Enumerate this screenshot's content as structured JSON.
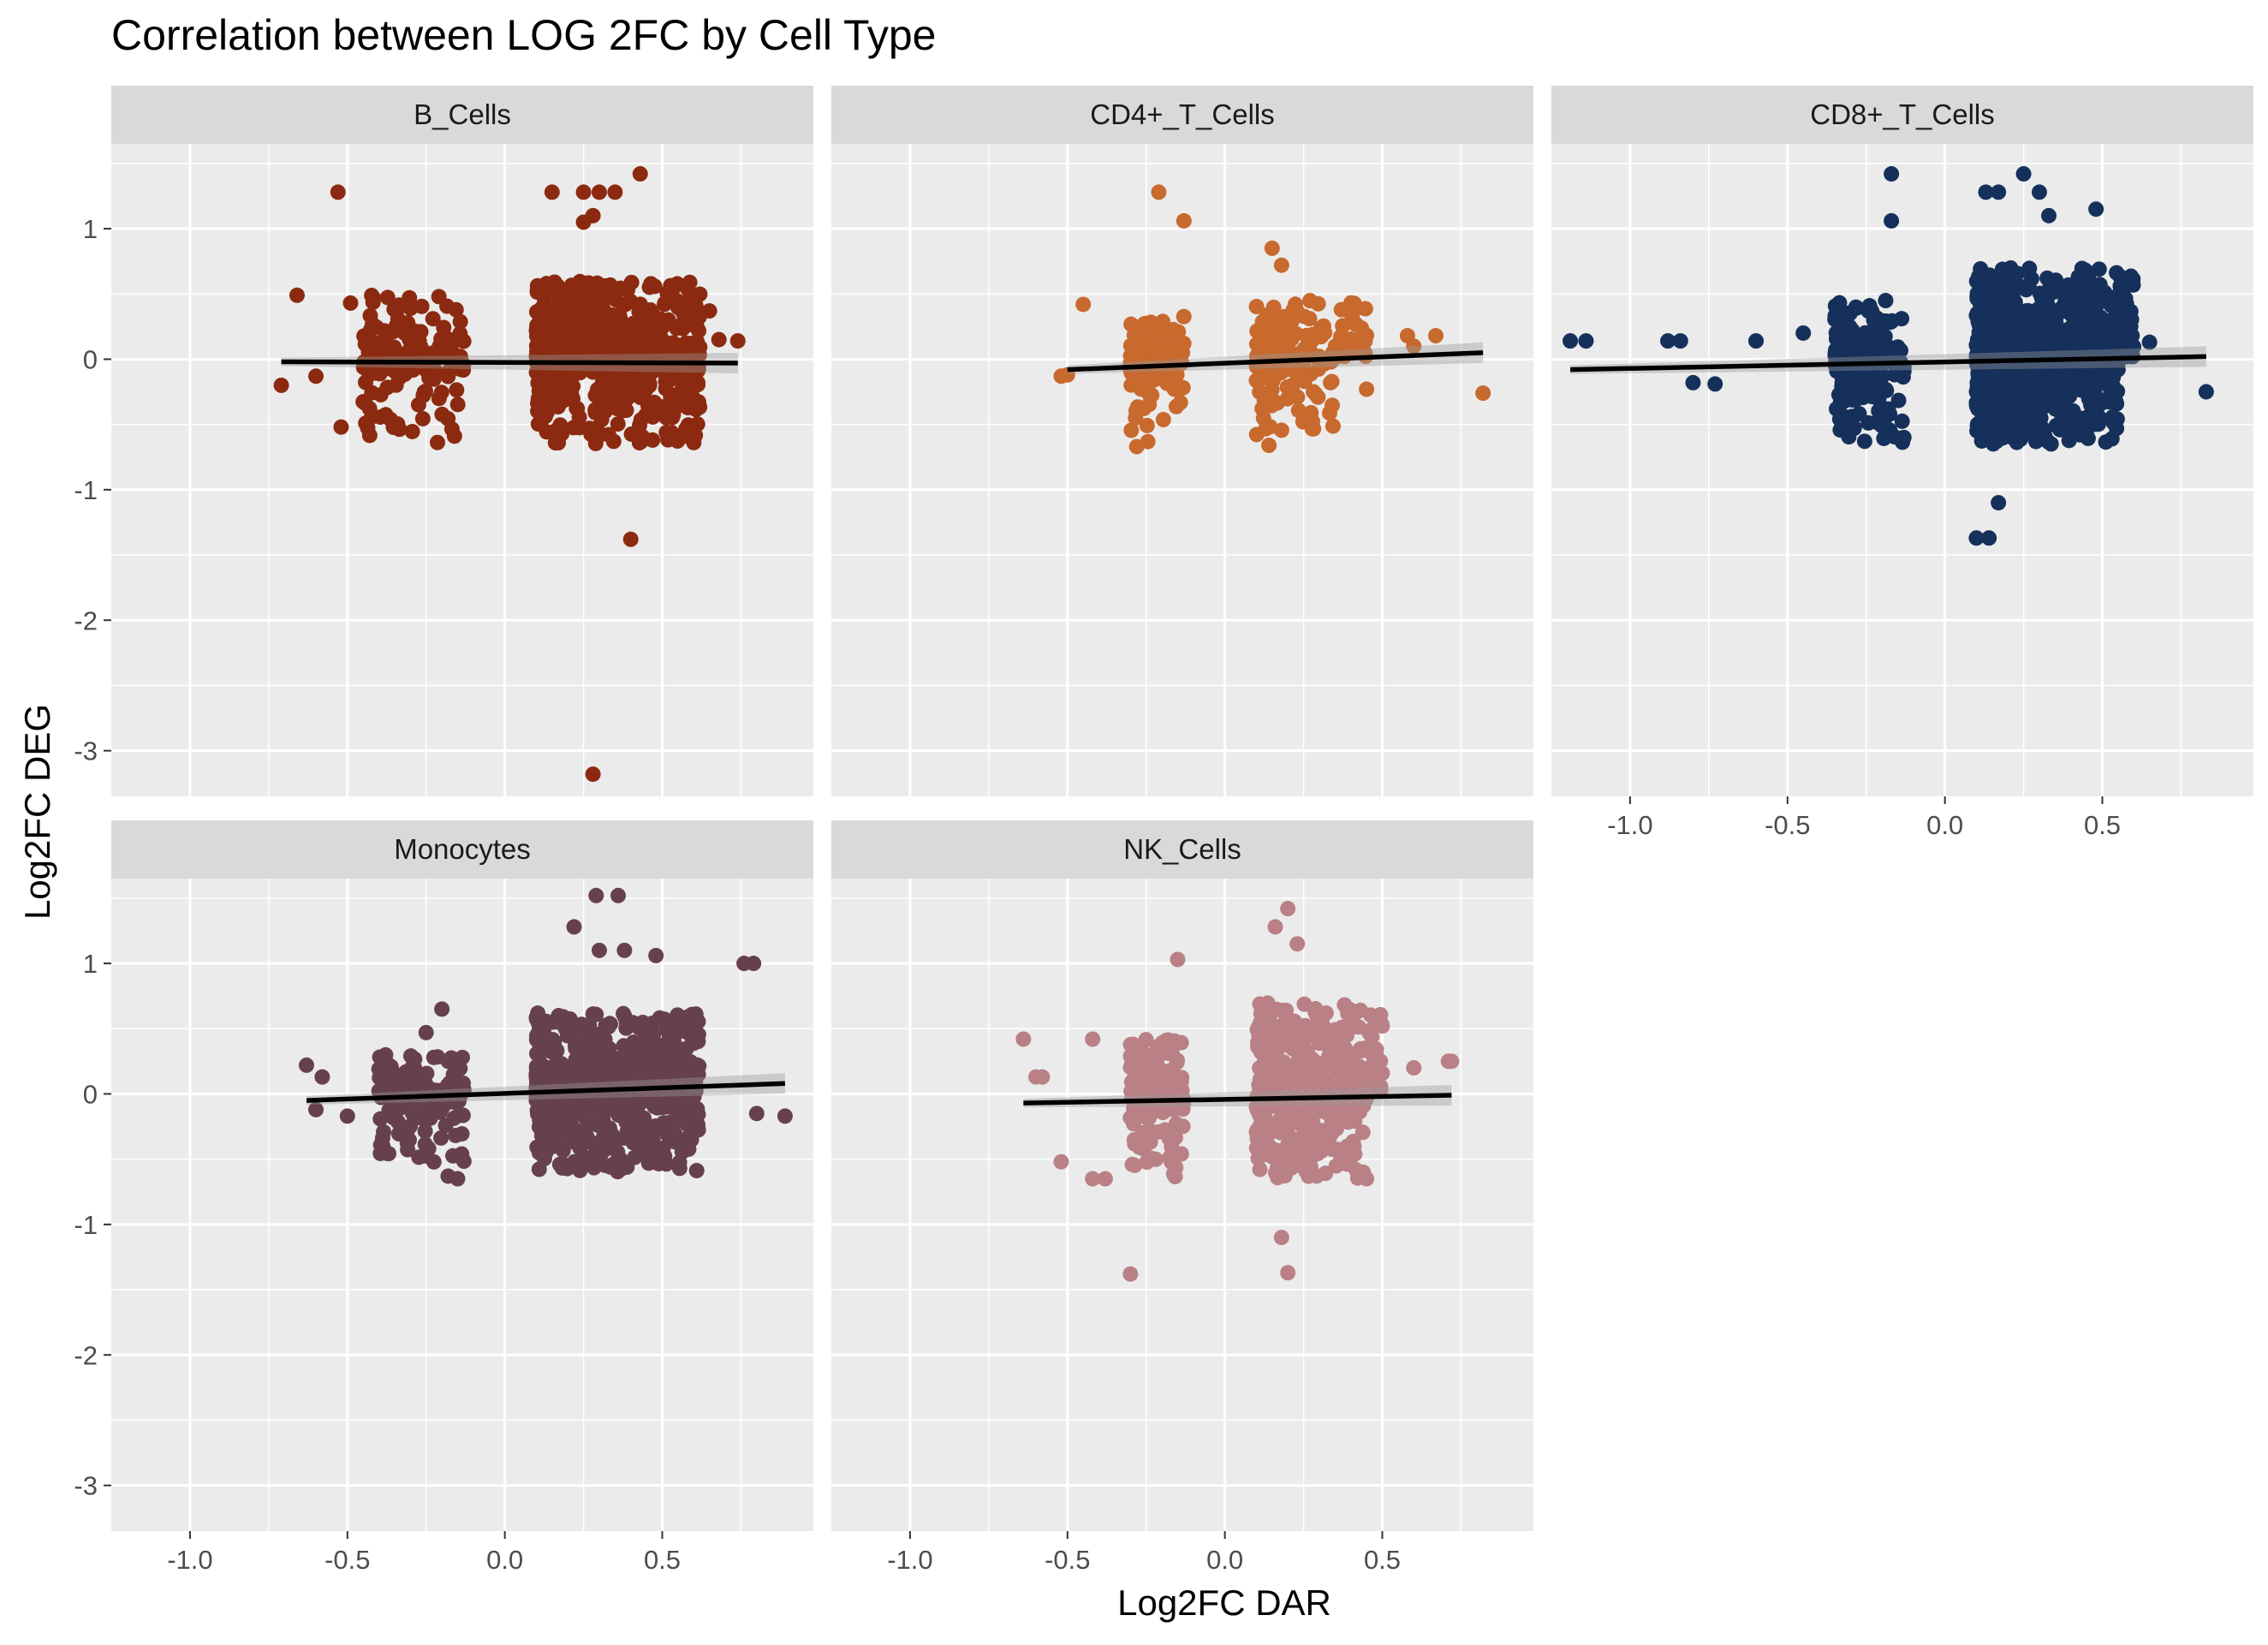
{
  "chart_data": {
    "type": "scatter",
    "title": "Correlation between LOG 2FC by Cell Type",
    "xlabel": "Log2FC DAR",
    "ylabel": "Log2FC DEG",
    "xlim": [
      -1.25,
      0.98
    ],
    "ylim": [
      -3.35,
      1.65
    ],
    "x_ticks": [
      -1.0,
      -0.5,
      0.0,
      0.5
    ],
    "x_tick_labels": [
      "-1.0",
      "-0.5",
      "0.0",
      "0.5"
    ],
    "y_ticks": [
      1,
      0,
      -1,
      -2,
      -3
    ],
    "y_tick_labels": [
      "1",
      "0",
      "-1",
      "-2",
      "-3"
    ],
    "grid": true,
    "legend": "none",
    "panels": [
      {
        "name": "B_Cells",
        "color": "#8B2A10",
        "trend": {
          "x": [
            -0.71,
            0.74
          ],
          "y": [
            -0.02,
            -0.03
          ]
        },
        "clusters": [
          {
            "x": [
              -0.45,
              -0.13
            ],
            "y": [
              0.02,
              0.5
            ],
            "n": 90
          },
          {
            "x": [
              -0.45,
              -0.13
            ],
            "y": [
              -0.65,
              -0.02
            ],
            "n": 80
          },
          {
            "x": [
              0.1,
              0.62
            ],
            "y": [
              0.02,
              0.6
            ],
            "n": 420
          },
          {
            "x": [
              0.1,
              0.62
            ],
            "y": [
              -0.65,
              -0.02
            ],
            "n": 300
          }
        ],
        "points": [
          {
            "x": -0.53,
            "y": 1.28
          },
          {
            "x": 0.15,
            "y": 1.28
          },
          {
            "x": 0.25,
            "y": 1.28
          },
          {
            "x": 0.3,
            "y": 1.28
          },
          {
            "x": 0.35,
            "y": 1.28
          },
          {
            "x": 0.43,
            "y": 1.42
          },
          {
            "x": 0.25,
            "y": 1.05
          },
          {
            "x": 0.28,
            "y": 1.1
          },
          {
            "x": -0.66,
            "y": 0.49
          },
          {
            "x": -0.6,
            "y": -0.13
          },
          {
            "x": -0.52,
            "y": -0.52
          },
          {
            "x": -0.49,
            "y": 0.43
          },
          {
            "x": -0.71,
            "y": -0.2
          },
          {
            "x": 0.4,
            "y": -1.38
          },
          {
            "x": 0.28,
            "y": -3.18
          },
          {
            "x": 0.68,
            "y": 0.15
          },
          {
            "x": 0.74,
            "y": 0.14
          },
          {
            "x": 0.65,
            "y": 0.37
          }
        ]
      },
      {
        "name": "CD4+_T_Cells",
        "color": "#C8692E",
        "trend": {
          "x": [
            -0.5,
            0.82
          ],
          "y": [
            -0.08,
            0.05
          ]
        },
        "clusters": [
          {
            "x": [
              -0.3,
              -0.13
            ],
            "y": [
              0.02,
              0.42
            ],
            "n": 45
          },
          {
            "x": [
              -0.3,
              -0.13
            ],
            "y": [
              -0.65,
              -0.02
            ],
            "n": 55
          },
          {
            "x": [
              0.1,
              0.45
            ],
            "y": [
              0.02,
              0.45
            ],
            "n": 110
          },
          {
            "x": [
              0.1,
              0.35
            ],
            "y": [
              -0.6,
              -0.02
            ],
            "n": 80
          }
        ],
        "points": [
          {
            "x": -0.21,
            "y": 1.28
          },
          {
            "x": -0.13,
            "y": 1.06
          },
          {
            "x": 0.15,
            "y": 0.85
          },
          {
            "x": 0.18,
            "y": 0.72
          },
          {
            "x": -0.45,
            "y": 0.42
          },
          {
            "x": -0.52,
            "y": -0.13
          },
          {
            "x": -0.5,
            "y": -0.12
          },
          {
            "x": -0.28,
            "y": -0.67
          },
          {
            "x": 0.14,
            "y": -0.66
          },
          {
            "x": 0.45,
            "y": -0.23
          },
          {
            "x": 0.58,
            "y": 0.18
          },
          {
            "x": 0.6,
            "y": 0.1
          },
          {
            "x": 0.67,
            "y": 0.18
          },
          {
            "x": 0.82,
            "y": -0.26
          }
        ]
      },
      {
        "name": "CD8+_T_Cells",
        "color": "#15305A",
        "trend": {
          "x": [
            -1.19,
            0.83
          ],
          "y": [
            -0.08,
            0.02
          ]
        },
        "clusters": [
          {
            "x": [
              -0.35,
              -0.13
            ],
            "y": [
              0.02,
              0.45
            ],
            "n": 120
          },
          {
            "x": [
              -0.35,
              -0.13
            ],
            "y": [
              -0.65,
              -0.02
            ],
            "n": 110
          },
          {
            "x": [
              0.1,
              0.6
            ],
            "y": [
              0.02,
              0.7
            ],
            "n": 600
          },
          {
            "x": [
              0.1,
              0.55
            ],
            "y": [
              -0.65,
              -0.02
            ],
            "n": 450
          }
        ],
        "points": [
          {
            "x": -0.17,
            "y": 1.42
          },
          {
            "x": -0.17,
            "y": 1.06
          },
          {
            "x": 0.13,
            "y": 1.28
          },
          {
            "x": 0.17,
            "y": 1.28
          },
          {
            "x": 0.25,
            "y": 1.42
          },
          {
            "x": 0.3,
            "y": 1.28
          },
          {
            "x": 0.33,
            "y": 1.1
          },
          {
            "x": 0.48,
            "y": 1.15
          },
          {
            "x": -1.19,
            "y": 0.14
          },
          {
            "x": -1.14,
            "y": 0.14
          },
          {
            "x": -0.88,
            "y": 0.14
          },
          {
            "x": -0.84,
            "y": 0.14
          },
          {
            "x": -0.8,
            "y": -0.18
          },
          {
            "x": -0.73,
            "y": -0.19
          },
          {
            "x": -0.6,
            "y": 0.14
          },
          {
            "x": -0.45,
            "y": 0.2
          },
          {
            "x": 0.17,
            "y": -1.1
          },
          {
            "x": 0.1,
            "y": -1.37
          },
          {
            "x": 0.14,
            "y": -1.37
          },
          {
            "x": 0.83,
            "y": -0.25
          },
          {
            "x": 0.65,
            "y": 0.13
          }
        ]
      },
      {
        "name": "Monocytes",
        "color": "#66414B",
        "trend": {
          "x": [
            -0.63,
            0.89
          ],
          "y": [
            -0.05,
            0.08
          ]
        },
        "clusters": [
          {
            "x": [
              -0.4,
              -0.13
            ],
            "y": [
              0.02,
              0.3
            ],
            "n": 80
          },
          {
            "x": [
              -0.4,
              -0.13
            ],
            "y": [
              -0.55,
              -0.02
            ],
            "n": 80
          },
          {
            "x": [
              0.1,
              0.62
            ],
            "y": [
              0.02,
              0.62
            ],
            "n": 450
          },
          {
            "x": [
              0.1,
              0.62
            ],
            "y": [
              -0.6,
              -0.02
            ],
            "n": 300
          }
        ],
        "points": [
          {
            "x": -0.63,
            "y": 0.22
          },
          {
            "x": -0.58,
            "y": 0.13
          },
          {
            "x": -0.6,
            "y": -0.12
          },
          {
            "x": -0.5,
            "y": -0.17
          },
          {
            "x": -0.25,
            "y": 0.47
          },
          {
            "x": -0.2,
            "y": 0.65
          },
          {
            "x": -0.18,
            "y": -0.63
          },
          {
            "x": -0.15,
            "y": -0.65
          },
          {
            "x": 0.29,
            "y": 1.52
          },
          {
            "x": 0.36,
            "y": 1.52
          },
          {
            "x": 0.22,
            "y": 1.28
          },
          {
            "x": 0.3,
            "y": 1.1
          },
          {
            "x": 0.38,
            "y": 1.1
          },
          {
            "x": 0.48,
            "y": 1.06
          },
          {
            "x": 0.76,
            "y": 1.0
          },
          {
            "x": 0.79,
            "y": 1.0
          },
          {
            "x": 0.89,
            "y": -0.17
          },
          {
            "x": 0.8,
            "y": -0.15
          }
        ]
      },
      {
        "name": "NK_Cells",
        "color": "#B98085",
        "trend": {
          "x": [
            -0.64,
            0.72
          ],
          "y": [
            -0.07,
            -0.01
          ]
        },
        "clusters": [
          {
            "x": [
              -0.3,
              -0.13
            ],
            "y": [
              0.02,
              0.45
            ],
            "n": 90
          },
          {
            "x": [
              -0.3,
              -0.13
            ],
            "y": [
              -0.65,
              -0.02
            ],
            "n": 90
          },
          {
            "x": [
              0.1,
              0.5
            ],
            "y": [
              0.02,
              0.7
            ],
            "n": 320
          },
          {
            "x": [
              0.1,
              0.45
            ],
            "y": [
              -0.65,
              -0.02
            ],
            "n": 220
          }
        ],
        "points": [
          {
            "x": -0.64,
            "y": 0.42
          },
          {
            "x": -0.6,
            "y": 0.13
          },
          {
            "x": -0.58,
            "y": 0.13
          },
          {
            "x": -0.52,
            "y": -0.52
          },
          {
            "x": -0.42,
            "y": 0.42
          },
          {
            "x": -0.42,
            "y": -0.65
          },
          {
            "x": -0.38,
            "y": -0.65
          },
          {
            "x": -0.15,
            "y": 1.03
          },
          {
            "x": -0.3,
            "y": -1.38
          },
          {
            "x": 0.18,
            "y": -1.1
          },
          {
            "x": 0.2,
            "y": -1.37
          },
          {
            "x": 0.2,
            "y": 1.42
          },
          {
            "x": 0.16,
            "y": 1.28
          },
          {
            "x": 0.23,
            "y": 1.15
          },
          {
            "x": 0.45,
            "y": -0.65
          },
          {
            "x": 0.6,
            "y": 0.2
          },
          {
            "x": 0.71,
            "y": 0.25
          },
          {
            "x": 0.72,
            "y": 0.25
          }
        ]
      }
    ]
  }
}
